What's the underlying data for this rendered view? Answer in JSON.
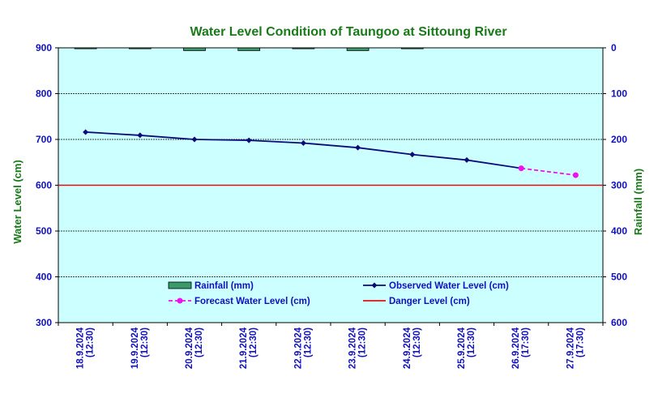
{
  "chart_data": {
    "type": "line",
    "title": "Water Level Condition of Taungoo at  Sittoung River",
    "ylabel": "Water Level (cm)",
    "y2label": "Rainfall (mm)",
    "ylim": [
      300,
      900
    ],
    "y2lim": [
      0,
      600
    ],
    "y2_inverted": true,
    "yticks": [
      300,
      400,
      500,
      600,
      700,
      800,
      900
    ],
    "y2ticks": [
      0,
      100,
      200,
      300,
      400,
      500,
      600
    ],
    "categories": [
      [
        "18.9.2024",
        "(12:30)"
      ],
      [
        "19.9.2024",
        "(12:30)"
      ],
      [
        "20.9.2024",
        "(12:30)"
      ],
      [
        "21.9.2024",
        "(12:30)"
      ],
      [
        "22.9.2024",
        "(12:30)"
      ],
      [
        "23.9.2024",
        "(12:30)"
      ],
      [
        "24.9.2024",
        "(12:30)"
      ],
      [
        "25.9.2024",
        "(12:30)"
      ],
      [
        "26.9.2024",
        "(17:30)"
      ],
      [
        "27.9.2024",
        "(17:30)"
      ]
    ],
    "grid": true,
    "legend_position": "bottom-center",
    "series": [
      {
        "name": "Rainfall (mm)",
        "kind": "bar",
        "axis": "right",
        "color": "#3a9a6a",
        "values": [
          2,
          2,
          6,
          6,
          2,
          6,
          2,
          0,
          0,
          0
        ]
      },
      {
        "name": "Observed Water Level (cm)",
        "kind": "line",
        "axis": "left",
        "color": "#0a0a7a",
        "marker": "diamond",
        "values": [
          716,
          709,
          700,
          698,
          692,
          682,
          667,
          655,
          637,
          null
        ]
      },
      {
        "name": "Forecast Water Level (cm)",
        "kind": "line",
        "axis": "left",
        "color": "#ee10ee",
        "dashed": true,
        "marker": "circle",
        "values": [
          null,
          null,
          null,
          null,
          null,
          null,
          null,
          null,
          637,
          622
        ]
      },
      {
        "name": "Danger Level (cm)",
        "kind": "line",
        "axis": "left",
        "color": "#e01010",
        "values": [
          600,
          600,
          600,
          600,
          600,
          600,
          600,
          600,
          600,
          600
        ]
      }
    ]
  }
}
